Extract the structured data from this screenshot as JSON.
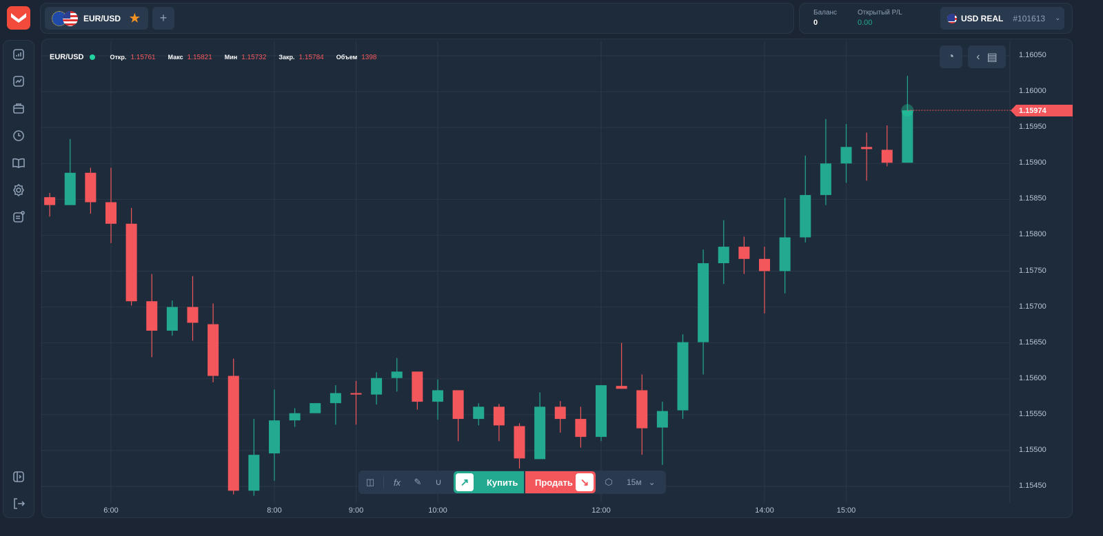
{
  "header": {
    "asset_tab": "EUR/USD",
    "add_tab": "+",
    "balance_label": "Баланс",
    "balance_value": "0",
    "pl_label": "Открытый P/L",
    "pl_value": "0.00",
    "account_name": "USD REAL",
    "account_id": "#101613"
  },
  "sidebar": {
    "items": [
      "chart-icon",
      "analytics-icon",
      "portfolio-icon",
      "history-icon",
      "education-icon",
      "settings-icon",
      "news-icon"
    ],
    "bottom": [
      "collapse-icon",
      "logout-icon"
    ]
  },
  "ohlc": {
    "asset": "EUR/USD",
    "open_label": "Откр.",
    "open": "1.15761",
    "high_label": "Макс",
    "high": "1.15821",
    "low_label": "Мин",
    "low": "1.15732",
    "close_label": "Закр.",
    "close": "1.15784",
    "volume_label": "Объем",
    "volume": "1398"
  },
  "toolbar": {
    "buy_label": "Купить",
    "sell_label": "Продать",
    "timeframe": "15м"
  },
  "colors": {
    "up": "#22a98f",
    "down": "#f4575b",
    "accent": "#f24b3c"
  },
  "chart_data": {
    "type": "candlestick",
    "ylim": [
      1.1543,
      1.1607
    ],
    "current_price": "1.15974",
    "y_ticks": [
      "1.16050",
      "1.16000",
      "1.15950",
      "1.15900",
      "1.15850",
      "1.15800",
      "1.15750",
      "1.15700",
      "1.15650",
      "1.15600",
      "1.15550",
      "1.15500",
      "1.15450"
    ],
    "x_ticks": [
      "6:00",
      "8:00",
      "9:00",
      "10:00",
      "12:00",
      "14:00",
      "15:00"
    ],
    "candles": [
      [
        "5:15",
        1.15853,
        1.15859,
        1.15826,
        1.15842
      ],
      [
        "5:30",
        1.15842,
        1.15934,
        1.15842,
        1.15887
      ],
      [
        "5:45",
        1.15887,
        1.15894,
        1.1583,
        1.15846
      ],
      [
        "6:00",
        1.15846,
        1.15894,
        1.15789,
        1.15816
      ],
      [
        "6:15",
        1.15816,
        1.15838,
        1.15702,
        1.15708
      ],
      [
        "6:30",
        1.15708,
        1.15746,
        1.1563,
        1.15667
      ],
      [
        "6:45",
        1.15667,
        1.15709,
        1.1566,
        1.157
      ],
      [
        "7:00",
        1.157,
        1.15743,
        1.15653,
        1.15678
      ],
      [
        "7:15",
        1.15676,
        1.15705,
        1.15595,
        1.15604
      ],
      [
        "7:30",
        1.15604,
        1.15628,
        1.15439,
        1.15444
      ],
      [
        "7:45",
        1.15444,
        1.15544,
        1.15437,
        1.15494
      ],
      [
        "8:00",
        1.15496,
        1.15585,
        1.15458,
        1.15542
      ],
      [
        "8:15",
        1.15542,
        1.15559,
        1.15533,
        1.15552
      ],
      [
        "8:30",
        1.15552,
        1.15566,
        1.15552,
        1.15566
      ],
      [
        "8:45",
        1.15566,
        1.15591,
        1.15536,
        1.1558
      ],
      [
        "9:00",
        1.1558,
        1.15597,
        1.15536,
        1.15578
      ],
      [
        "9:15",
        1.15578,
        1.15609,
        1.15564,
        1.15601
      ],
      [
        "9:30",
        1.15601,
        1.15629,
        1.15582,
        1.1561
      ],
      [
        "9:45",
        1.1561,
        1.1561,
        1.15557,
        1.15568
      ],
      [
        "10:00",
        1.15568,
        1.15599,
        1.15543,
        1.15584
      ],
      [
        "10:15",
        1.15584,
        1.15584,
        1.15513,
        1.15544
      ],
      [
        "10:30",
        1.15544,
        1.15566,
        1.15535,
        1.15561
      ],
      [
        "10:45",
        1.15561,
        1.15565,
        1.15513,
        1.15535
      ],
      [
        "11:00",
        1.15534,
        1.15538,
        1.15475,
        1.15489
      ],
      [
        "11:15",
        1.15488,
        1.15581,
        1.15488,
        1.15561
      ],
      [
        "11:30",
        1.15561,
        1.15569,
        1.15525,
        1.15544
      ],
      [
        "11:45",
        1.15544,
        1.15561,
        1.15504,
        1.15519
      ],
      [
        "12:00",
        1.15519,
        1.15591,
        1.15513,
        1.15591
      ],
      [
        "12:15",
        1.1559,
        1.1565,
        1.15586,
        1.15586
      ],
      [
        "12:30",
        1.15584,
        1.15606,
        1.15494,
        1.15531
      ],
      [
        "12:45",
        1.15532,
        1.15568,
        1.1548,
        1.15555
      ],
      [
        "13:00",
        1.15556,
        1.15662,
        1.15544,
        1.15651
      ],
      [
        "13:15",
        1.15651,
        1.1578,
        1.15606,
        1.15761
      ],
      [
        "13:30",
        1.15761,
        1.15821,
        1.15732,
        1.15784
      ],
      [
        "13:45",
        1.15784,
        1.15798,
        1.15746,
        1.15767
      ],
      [
        "14:00",
        1.15767,
        1.15784,
        1.15691,
        1.1575
      ],
      [
        "14:15",
        1.1575,
        1.15852,
        1.15719,
        1.15797
      ],
      [
        "14:30",
        1.15797,
        1.15911,
        1.1579,
        1.15856
      ],
      [
        "14:45",
        1.15856,
        1.15962,
        1.15842,
        1.159
      ],
      [
        "15:00",
        1.159,
        1.15955,
        1.15873,
        1.15923
      ],
      [
        "15:15",
        1.15923,
        1.15943,
        1.15876,
        1.1592
      ],
      [
        "15:30",
        1.15919,
        1.15953,
        1.15896,
        1.15901
      ],
      [
        "15:45",
        1.15901,
        1.16022,
        1.15901,
        1.15974
      ]
    ]
  }
}
